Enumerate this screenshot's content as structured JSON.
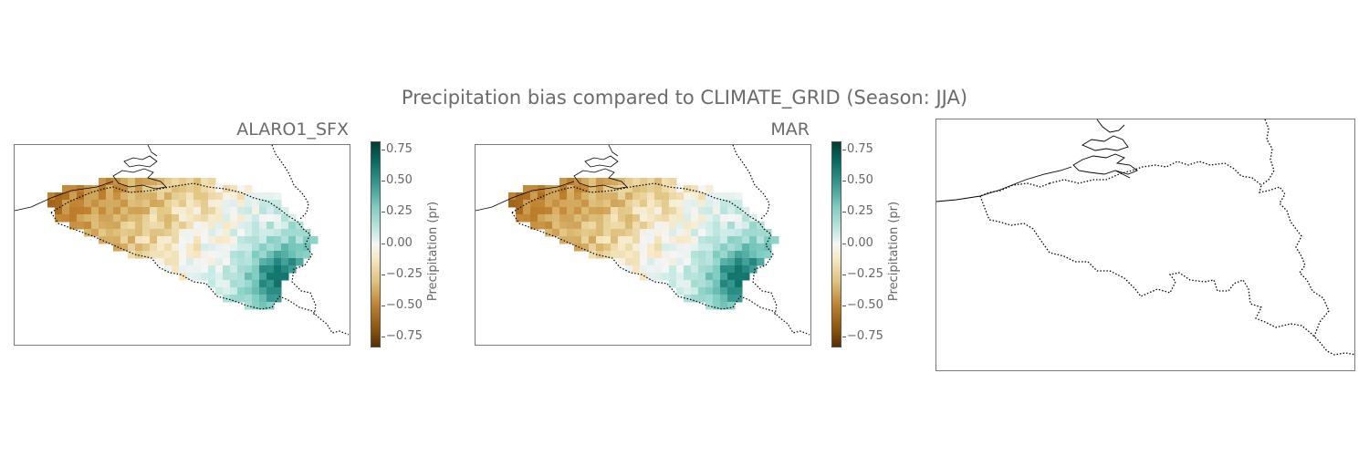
{
  "title": "Precipitation bias compared to CLIMATE_GRID (Season: JJA)",
  "colors": {
    "text": "#6b6b6b",
    "colormap": "BrBG"
  },
  "chart_data": [
    {
      "type": "heatmap",
      "title": "ALARO1_SFX",
      "colorbar_label": "Precipitation (pr)",
      "colorbar_ticks": [
        "0.75",
        "0.50",
        "0.25",
        "0.00",
        "−0.25",
        "−0.50",
        "−0.75"
      ],
      "vmin": -0.8,
      "vmax": 0.8,
      "colormap": "BrBG",
      "bias_pattern": {
        "north_west": -0.55,
        "central": -0.3,
        "south_east": -0.05,
        "eifel": 0.3
      }
    },
    {
      "type": "heatmap",
      "title": "MAR",
      "colorbar_label": "Precipitation (pr)",
      "colorbar_ticks": [
        "0.75",
        "0.50",
        "0.25",
        "0.00",
        "−0.25",
        "−0.50",
        "−0.75"
      ],
      "vmin": -0.8,
      "vmax": 0.8,
      "colormap": "BrBG",
      "bias_pattern": {
        "north_west": -0.55,
        "central": -0.3,
        "south_east": -0.05,
        "eifel": 0.3
      }
    },
    {
      "type": "map",
      "title": "",
      "content": "Belgium border outline only"
    }
  ]
}
